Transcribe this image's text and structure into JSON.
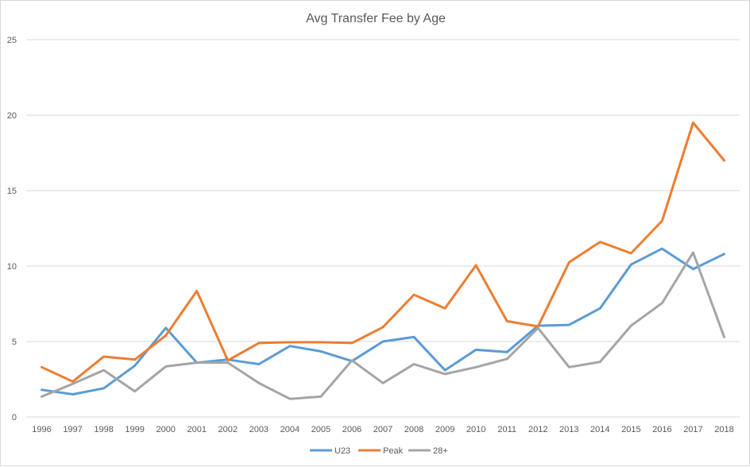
{
  "chart_data": {
    "type": "line",
    "title": "Avg Transfer Fee by Age",
    "xlabel": "",
    "ylabel": "",
    "ylim": [
      0,
      25
    ],
    "yticks": [
      0,
      5,
      10,
      15,
      20,
      25
    ],
    "grid": true,
    "legend": "bottom-center",
    "categories": [
      "1996",
      "1997",
      "1998",
      "1999",
      "2000",
      "2001",
      "2002",
      "2003",
      "2004",
      "2005",
      "2006",
      "2007",
      "2008",
      "2009",
      "2010",
      "2011",
      "2012",
      "2013",
      "2014",
      "2015",
      "2016",
      "2017",
      "2018"
    ],
    "series": [
      {
        "name": "U23",
        "color": "#5b9bd5",
        "values": [
          1.8,
          1.5,
          1.9,
          3.4,
          5.9,
          3.6,
          3.8,
          3.5,
          4.7,
          4.35,
          3.7,
          5.0,
          5.3,
          3.1,
          4.45,
          4.3,
          6.05,
          6.1,
          7.2,
          10.1,
          11.15,
          9.8,
          10.8
        ]
      },
      {
        "name": "Peak",
        "color": "#ed7d31",
        "values": [
          3.3,
          2.35,
          4.0,
          3.8,
          5.4,
          8.35,
          3.75,
          4.9,
          4.95,
          4.95,
          4.9,
          5.95,
          8.1,
          7.2,
          10.05,
          6.35,
          6.0,
          10.25,
          11.6,
          10.85,
          13.0,
          19.5,
          17.0
        ]
      },
      {
        "name": "28+",
        "color": "#a5a5a5",
        "values": [
          1.35,
          2.2,
          3.1,
          1.7,
          3.35,
          3.6,
          3.6,
          2.25,
          1.2,
          1.35,
          3.75,
          2.25,
          3.5,
          2.85,
          3.3,
          3.85,
          5.9,
          3.3,
          3.65,
          6.05,
          7.55,
          10.9,
          5.3
        ]
      }
    ]
  }
}
